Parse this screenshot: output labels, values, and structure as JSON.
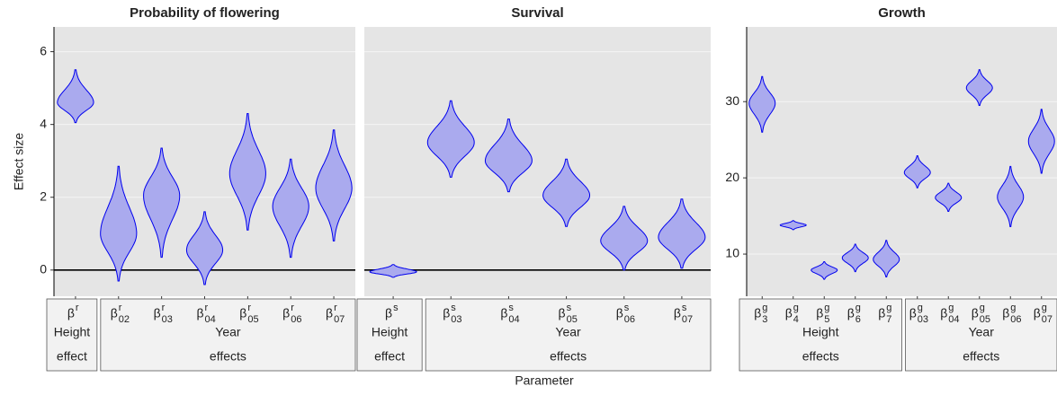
{
  "y_label": "Effect size",
  "x_label": "Parameter",
  "chart_data": [
    {
      "type": "violin",
      "title": "Probability of flowering",
      "color": "#0000ee",
      "fill": "#aaaaee",
      "categories": [
        {
          "symbol": "β",
          "sup": "r"
        },
        {
          "symbol": "β",
          "sup": "r",
          "sub": "02"
        },
        {
          "symbol": "β",
          "sup": "r",
          "sub": "03"
        },
        {
          "symbol": "β",
          "sup": "r",
          "sub": "04"
        },
        {
          "symbol": "β",
          "sup": "r",
          "sub": "05"
        },
        {
          "symbol": "β",
          "sup": "r",
          "sub": "06"
        },
        {
          "symbol": "β",
          "sup": "r",
          "sub": "07"
        }
      ],
      "values": [
        4.6,
        1.0,
        2.05,
        0.55,
        2.65,
        1.75,
        2.25
      ],
      "lower": [
        4.05,
        -0.3,
        0.35,
        -0.4,
        1.1,
        0.35,
        0.8
      ],
      "upper": [
        5.5,
        2.85,
        3.35,
        1.6,
        4.3,
        3.05,
        3.85
      ],
      "groups": [
        {
          "lines": [
            "Height",
            "effect"
          ],
          "n": 1
        },
        {
          "lines": [
            "Year",
            "effects"
          ],
          "n": 6
        }
      ],
      "ylim": [
        -0.72,
        6.68
      ],
      "yticks": [
        0,
        2,
        4,
        6
      ],
      "tick_labels": true,
      "hline": 0,
      "grid": true
    },
    {
      "type": "violin",
      "title": "Survival",
      "color": "#0000ee",
      "fill": "#aaaaee",
      "categories": [
        {
          "symbol": "β",
          "sup": "s"
        },
        {
          "symbol": "β",
          "sup": "s",
          "sub": "03"
        },
        {
          "symbol": "β",
          "sup": "s",
          "sub": "04"
        },
        {
          "symbol": "β",
          "sup": "s",
          "sub": "05"
        },
        {
          "symbol": "β",
          "sup": "s",
          "sub": "06"
        },
        {
          "symbol": "β",
          "sup": "s",
          "sub": "07"
        }
      ],
      "values": [
        -0.05,
        3.5,
        3.0,
        2.05,
        0.8,
        0.9
      ],
      "lower": [
        -0.2,
        2.55,
        2.15,
        1.2,
        0.0,
        0.05
      ],
      "upper": [
        0.15,
        4.65,
        4.15,
        3.05,
        1.75,
        1.95
      ],
      "groups": [
        {
          "lines": [
            "Height",
            "effect"
          ],
          "n": 1
        },
        {
          "lines": [
            "Year",
            "effects"
          ],
          "n": 5
        }
      ],
      "ylim": [
        -0.72,
        6.68
      ],
      "yticks": [
        0,
        2,
        4,
        6
      ],
      "tick_labels": false,
      "hline": 0,
      "grid": true
    },
    {
      "type": "violin",
      "title": "Growth",
      "color": "#0000ee",
      "fill": "#aaaaee",
      "categories": [
        {
          "symbol": "β",
          "sup": "g",
          "sub": "3"
        },
        {
          "symbol": "β",
          "sup": "g",
          "sub": "4"
        },
        {
          "symbol": "β",
          "sup": "g",
          "sub": "5"
        },
        {
          "symbol": "β",
          "sup": "g",
          "sub": "6"
        },
        {
          "symbol": "β",
          "sup": "g",
          "sub": "7"
        },
        {
          "symbol": "β",
          "sup": "g",
          "sub": "03"
        },
        {
          "symbol": "β",
          "sup": "g",
          "sub": "04"
        },
        {
          "symbol": "β",
          "sup": "g",
          "sub": "05"
        },
        {
          "symbol": "β",
          "sup": "g",
          "sub": "06"
        },
        {
          "symbol": "β",
          "sup": "g",
          "sub": "07"
        }
      ],
      "values": [
        29.8,
        13.8,
        7.9,
        9.5,
        9.3,
        20.7,
        17.4,
        31.8,
        17.5,
        24.8
      ],
      "lower": [
        26.0,
        13.2,
        6.7,
        7.7,
        7.0,
        18.7,
        15.6,
        29.5,
        13.6,
        20.6
      ],
      "upper": [
        33.3,
        14.4,
        9.0,
        11.3,
        11.8,
        22.9,
        19.3,
        34.2,
        21.5,
        29.0
      ],
      "groups": [
        {
          "lines": [
            "Height",
            "effects"
          ],
          "n": 5
        },
        {
          "lines": [
            "Year",
            "effects"
          ],
          "n": 5
        }
      ],
      "ylim": [
        4.47,
        39.8
      ],
      "yticks": [
        10,
        20,
        30
      ],
      "tick_labels": true,
      "grid": true
    }
  ]
}
